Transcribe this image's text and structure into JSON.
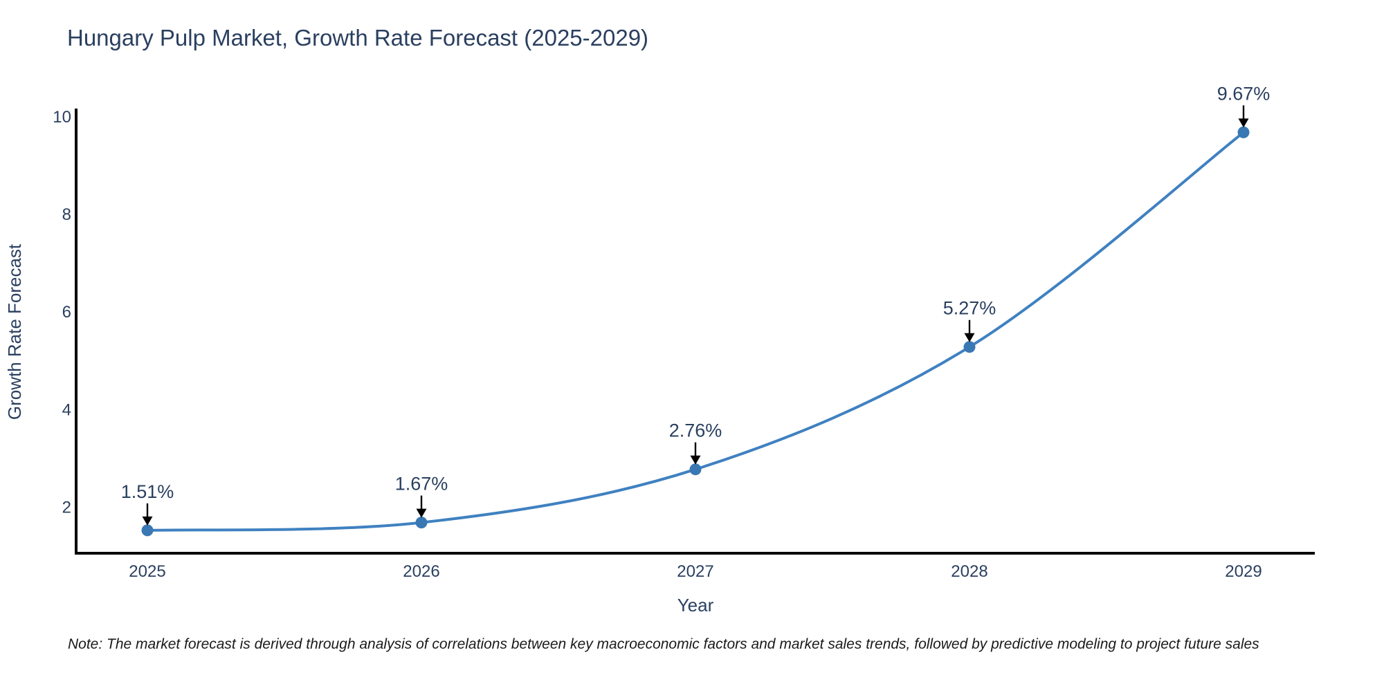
{
  "note": "Note: The market forecast is derived through analysis of correlations between key macroeconomic factors and market sales trends, followed by predictive modeling to project future sales",
  "chart_data": {
    "type": "line",
    "title": "Hungary Pulp Market, Growth Rate Forecast (2025-2029)",
    "xlabel": "Year",
    "ylabel": "Growth Rate Forecast",
    "categories": [
      "2025",
      "2026",
      "2027",
      "2028",
      "2029"
    ],
    "series": [
      {
        "name": "Growth Rate Forecast",
        "values": [
          1.51,
          1.67,
          2.76,
          5.27,
          9.67
        ]
      }
    ],
    "point_labels": [
      "1.51%",
      "1.67%",
      "2.76%",
      "5.27%",
      "9.67%"
    ],
    "yticks": [
      2,
      4,
      6,
      8,
      10
    ],
    "ylim": [
      1.04,
      10.13
    ],
    "line_shape": "spline",
    "markers": true,
    "grid": false,
    "legend_position": "none",
    "colors": {
      "line": "#3f81c1",
      "marker": "#3a78b4",
      "axis": "#000000",
      "text": "#2a3f5f",
      "note": "#1a1a1a",
      "arrow": "#000000",
      "background": "#ffffff"
    }
  }
}
